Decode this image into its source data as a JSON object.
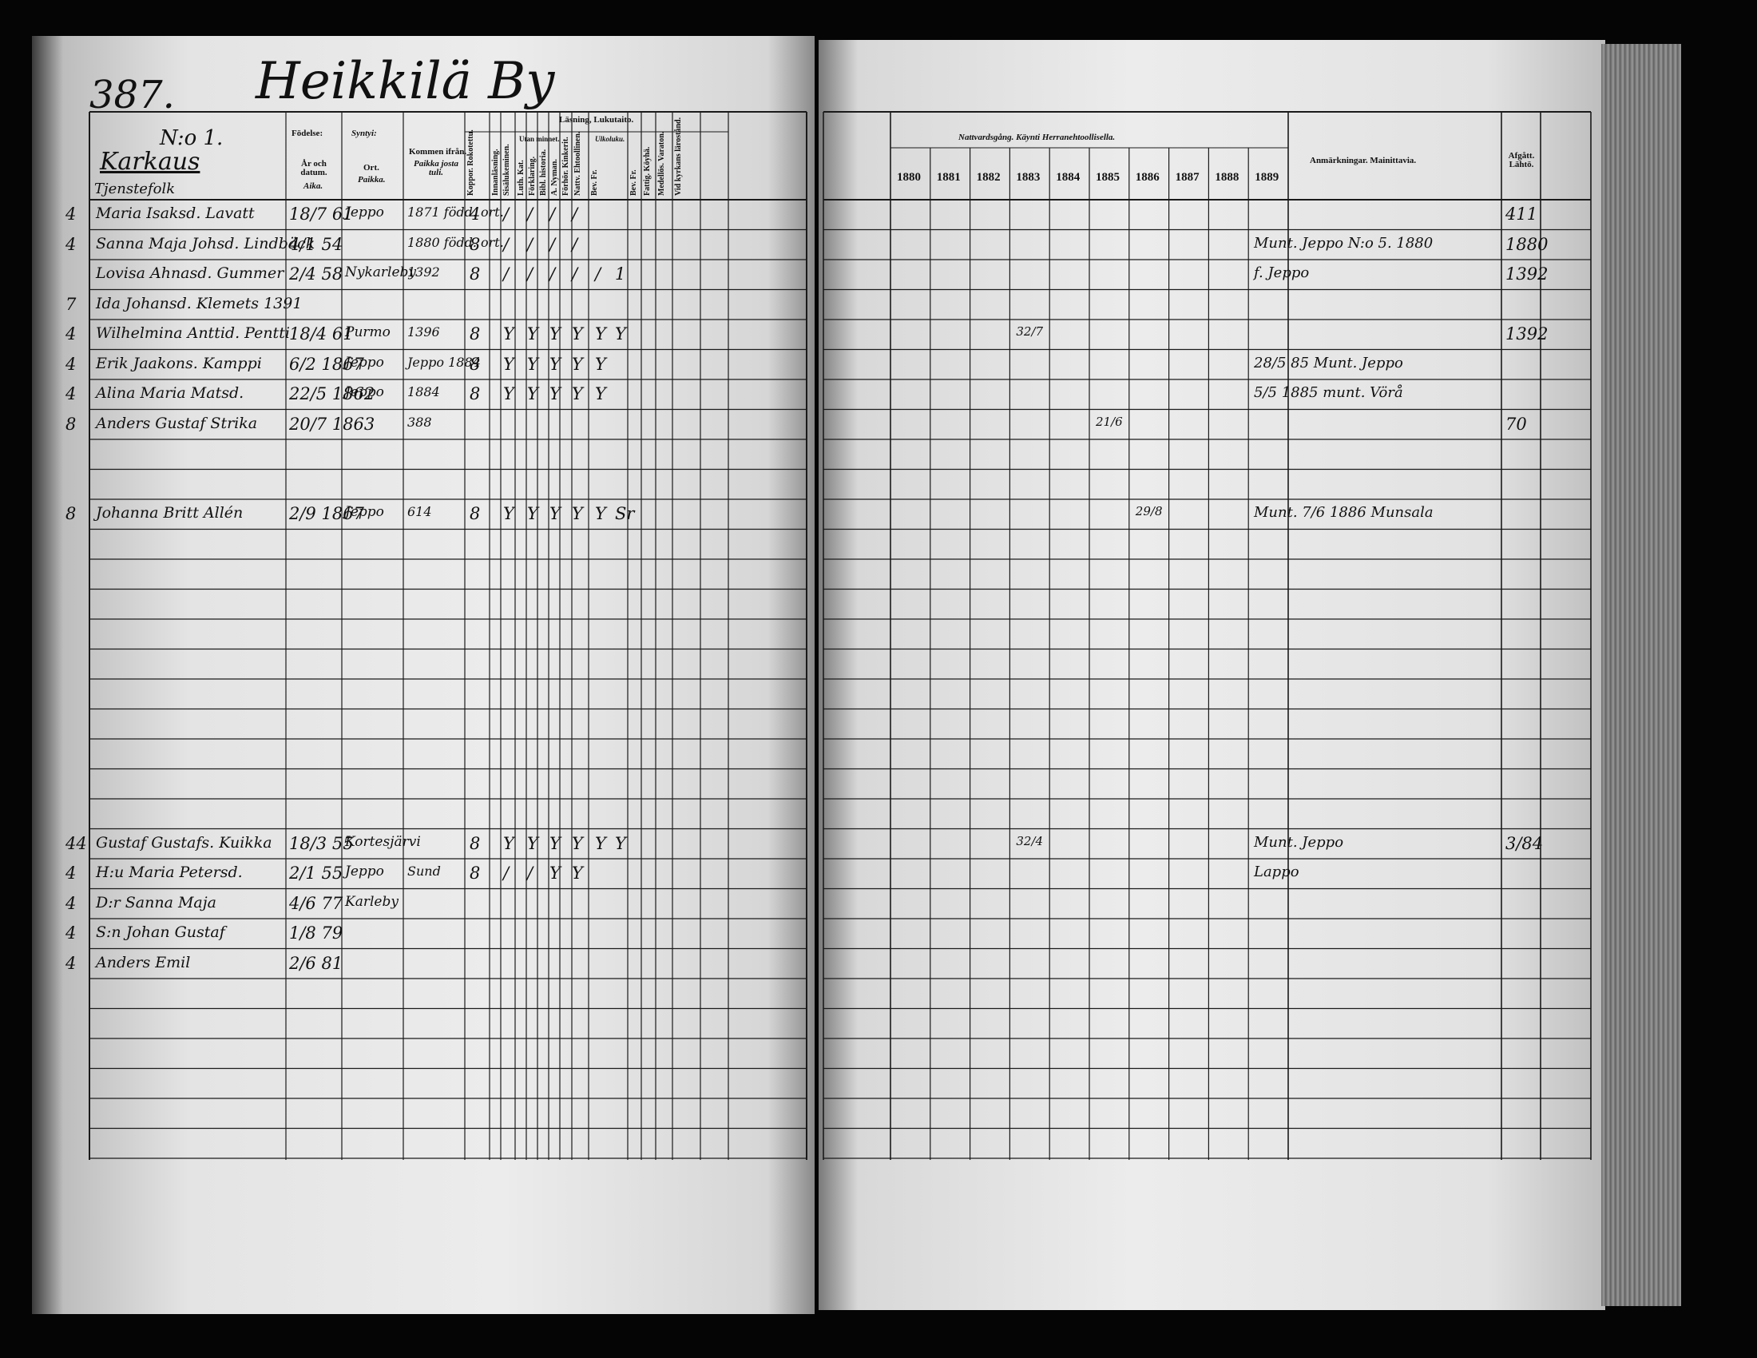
{
  "header": {
    "page_number": "387.",
    "title": "Heikkilä By",
    "farm_number": "N:o 1.",
    "farm_name": "Karkaus",
    "section": "Tjenstefolk"
  },
  "left_headers": {
    "birth": "Födelse:",
    "birth_fi": "Syntyi:",
    "year_date": "År och datum.",
    "year_date_fi": "Aika.",
    "place": "Ort.",
    "place_fi": "Paikka.",
    "came_from": "Kommen ifrån.",
    "came_from_fi": "Paikka josta tuli.",
    "reading": "Läsning, Lukutaito.",
    "by_heart": "Utan minnet.",
    "by_heart_fi": "Ulkoluku."
  },
  "vertical_headers": [
    "Koppor. Rokotettu.",
    "Innanläsning.",
    "Sisälukeminen.",
    "Luth. Kat.",
    "Förklaring.",
    "Bibl. historia.",
    "A. Nyman.",
    "Förhör. Kinkerit.",
    "Nattv. Ehtoollinen.",
    "Bev. Fr.",
    "Bev. Fr.",
    "Fattig. Köyhä.",
    "Medellös. Varaton.",
    "Vid kyrkans lärostånd."
  ],
  "right_headers": {
    "communion": "Nattvardsgång. Käynti Herranehtoollisella.",
    "years": [
      "1880",
      "1881",
      "1882",
      "1883",
      "1884",
      "1885",
      "1886",
      "1887",
      "1888",
      "1889"
    ],
    "remarks": "Anmärkningar. Mainittavia.",
    "departed": "Afgått. Lähtö."
  },
  "rows": [
    {
      "marker": "4",
      "name": "Maria Isaksd. Lavatt",
      "birth": "18/7 61",
      "place": "Jeppo",
      "came_from": "1871 född. ort.",
      "marks": [
        "4",
        "/",
        "/",
        "/",
        "/"
      ],
      "departed": "411"
    },
    {
      "marker": "4",
      "name": "Sanna Maja Johsd. Lindbäck",
      "birth": "4/1 54",
      "came_from": "1880 född. ort.",
      "marks": [
        "8",
        "/",
        "/",
        "/",
        "/"
      ],
      "remark": "Munt. Jeppo N:o 5. 1880",
      "departed": "1880"
    },
    {
      "name": "Lovisa Ahnasd. Gummer",
      "birth": "2/4 58",
      "place": "Nykarleby",
      "came_from": "1392",
      "marks": [
        "8",
        "/",
        "/",
        "/",
        "/",
        "/",
        "1"
      ],
      "remark": "f. Jeppo",
      "departed": "1392"
    },
    {
      "marker": "7",
      "name": "Ida Johansd. Klemets 1391"
    },
    {
      "marker": "4",
      "name": "Wilhelmina Anttid. Pentti",
      "birth": "18/4 61",
      "place": "Purmo",
      "came_from": "1396",
      "marks": [
        "8",
        "Y",
        "Y",
        "Y",
        "Y",
        "Y",
        "Y"
      ],
      "communion": "32/7",
      "departed": "1392"
    },
    {
      "marker": "4",
      "name": "Erik Jaakons. Kamppi",
      "birth": "6/2 1867",
      "place": "Jeppo",
      "came_from": "Jeppo 1884",
      "marks": [
        "8",
        "Y",
        "Y",
        "Y",
        "Y",
        "Y"
      ],
      "remark": "28/5 85 Munt. Jeppo"
    },
    {
      "marker": "4",
      "name": "Alina Maria Matsd.",
      "birth": "22/5 1862",
      "place": "Jeppo",
      "came_from": "1884",
      "marks": [
        "8",
        "Y",
        "Y",
        "Y",
        "Y",
        "Y"
      ],
      "remark": "5/5 1885 munt. Vörå"
    },
    {
      "marker": "8",
      "name": "Anders Gustaf Strika",
      "birth": "20/7 1863",
      "came_from": "388",
      "communion": "21/6",
      "departed": "70"
    },
    {
      "marker": "8",
      "name": "Johanna Britt Allén",
      "birth": "2/9 1867",
      "place": "Jeppo",
      "came_from": "614",
      "marks": [
        "8",
        "Y",
        "Y",
        "Y",
        "Y",
        "Y",
        "Sr"
      ],
      "communion": "29/8",
      "remark": "Munt. 7/6 1886 Munsala"
    },
    {
      "marker": "44",
      "name": "Gustaf Gustafs. Kuikka",
      "birth": "18/3 55",
      "place": "Kortesjärvi",
      "marks": [
        "8",
        "Y",
        "Y",
        "Y",
        "Y",
        "Y",
        "Y"
      ],
      "communion": "32/4",
      "remark": "Munt. Jeppo",
      "departed": "3/84"
    },
    {
      "marker": "4",
      "name": "H:u Maria Petersd.",
      "birth": "2/1 55",
      "place": "Jeppo",
      "came_from": "Sund",
      "marks": [
        "8",
        "/",
        "/",
        "Y",
        "Y"
      ],
      "remark": "Lappo"
    },
    {
      "marker": "4",
      "name": "D:r Sanna Maja",
      "birth": "4/6 77",
      "place": "Karleby"
    },
    {
      "marker": "4",
      "name": "S:n Johan Gustaf",
      "birth": "1/8 79"
    },
    {
      "marker": "4",
      "name": "Anders Emil",
      "birth": "2/6 81"
    }
  ]
}
